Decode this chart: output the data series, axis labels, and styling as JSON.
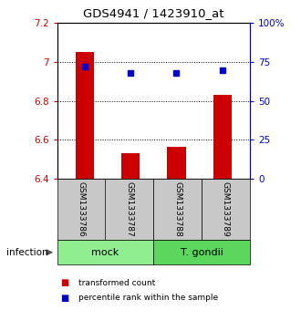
{
  "title": "GDS4941 / 1423910_at",
  "samples": [
    "GSM1333786",
    "GSM1333787",
    "GSM1333788",
    "GSM1333789"
  ],
  "transformed_counts": [
    7.05,
    6.53,
    6.565,
    6.83
  ],
  "percentile_ranks": [
    72,
    68,
    68,
    70
  ],
  "bar_baseline": 6.4,
  "ylim_left": [
    6.4,
    7.2
  ],
  "ylim_right": [
    0,
    100
  ],
  "yticks_left": [
    6.4,
    6.6,
    6.8,
    7.0,
    7.2
  ],
  "ytick_labels_left": [
    "6.4",
    "6.6",
    "6.8",
    "7",
    "7.2"
  ],
  "yticks_right": [
    0,
    25,
    50,
    75,
    100
  ],
  "ytick_labels_right": [
    "0",
    "25",
    "50",
    "75",
    "100%"
  ],
  "grid_lines": [
    7.0,
    6.8,
    6.6
  ],
  "bar_color": "#cc0000",
  "point_color": "#0000cc",
  "groups": [
    {
      "label": "mock",
      "samples": [
        0,
        1
      ],
      "color": "#90ee90"
    },
    {
      "label": "T. gondii",
      "samples": [
        2,
        3
      ],
      "color": "#5cd65c"
    }
  ],
  "group_row_label": "infection",
  "sample_box_color": "#c8c8c8",
  "legend_bar_label": "transformed count",
  "legend_point_label": "percentile rank within the sample",
  "bar_width": 0.4
}
